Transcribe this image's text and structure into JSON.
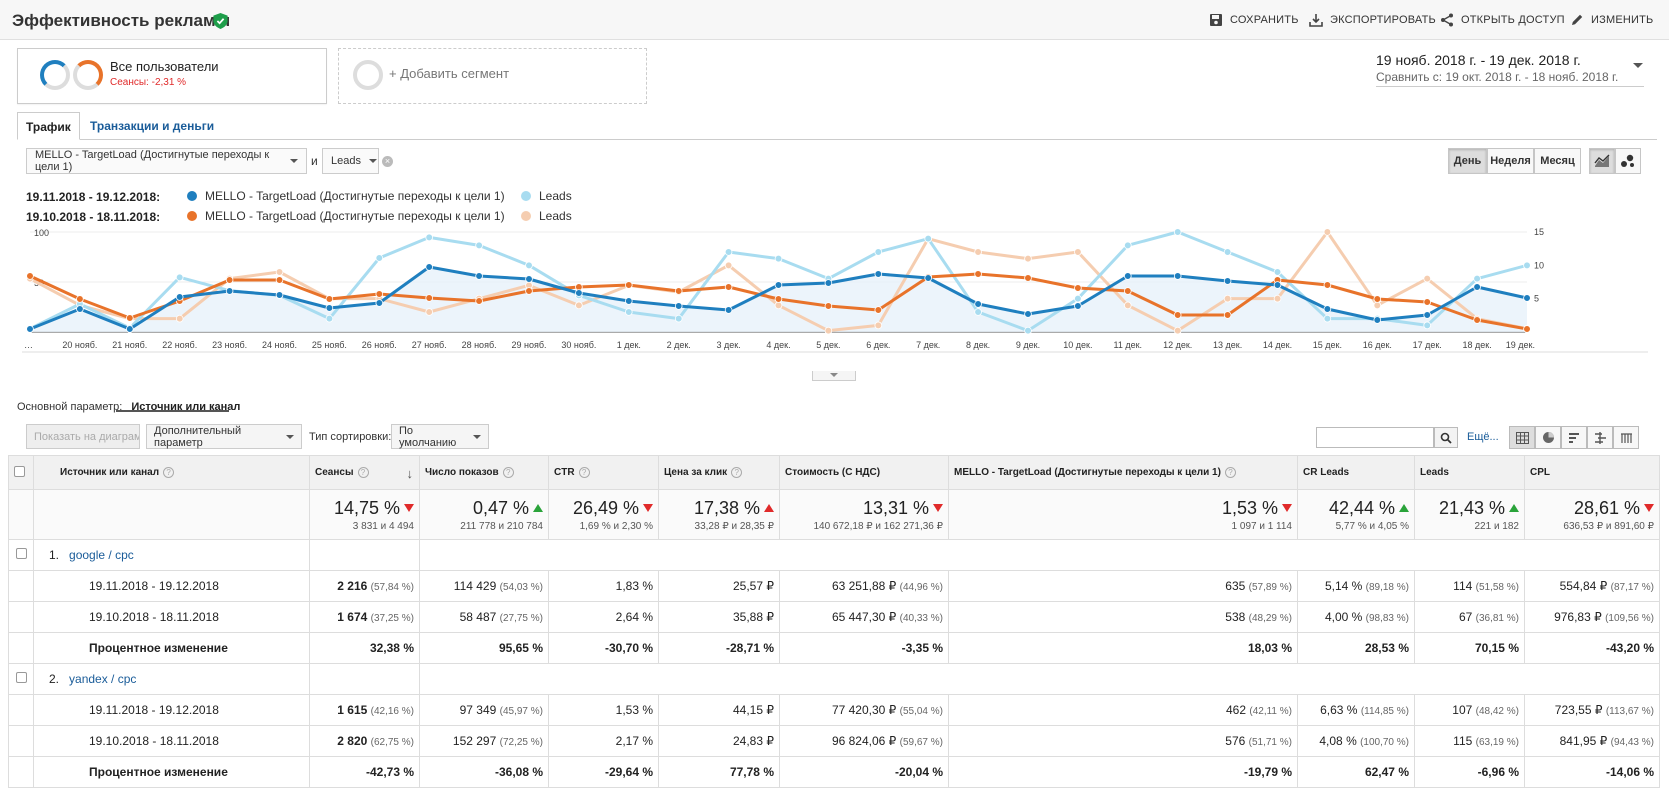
{
  "header": {
    "title": "Эффективность рекламы",
    "actions": [
      {
        "label": "СОХРАНИТЬ",
        "icon": "save-icon"
      },
      {
        "label": "ЭКСПОРТИРОВАТЬ",
        "icon": "export-icon"
      },
      {
        "label": "ОТКРЫТЬ ДОСТУП",
        "icon": "share-icon"
      },
      {
        "label": "ИЗМЕНИТЬ",
        "icon": "pencil-icon"
      }
    ]
  },
  "segments": {
    "active_title": "Все пользователи",
    "active_sub": "Сеансы: -2,31 %",
    "add_label": "+ Добавить сегмент"
  },
  "daterange": {
    "main": "19 нояб. 2018 г. - 19 дек. 2018 г.",
    "compare": "Сравнить с: 19 окт. 2018 г. - 18 нояб. 2018 г."
  },
  "tabs": [
    "Трафик",
    "Транзакции и деньги"
  ],
  "metric_selectors": {
    "metric1": "MELLO - TargetLoad (Достигнутые переходы к цели 1)",
    "conj": "и",
    "metric2": "Leads"
  },
  "period_buttons": [
    "День",
    "Неделя",
    "Месяц"
  ],
  "legend": {
    "period1": "19.11.2018 - 19.12.2018:",
    "period2": "19.10.2018 - 18.11.2018:",
    "metric1": "MELLO - TargetLoad (Достигнутые переходы к цели 1)",
    "metric2": "Leads"
  },
  "colors": {
    "series1_current": "#1f7fbf",
    "series2_current": "#a8dcf0",
    "series1_prev": "#e8732a",
    "series2_prev": "#f5cdb0"
  },
  "chart_data": {
    "type": "line",
    "x": [
      "…",
      "20 нояб.",
      "21 нояб.",
      "22 нояб.",
      "23 нояб.",
      "24 нояб.",
      "25 нояб.",
      "26 нояб.",
      "27 нояб.",
      "28 нояб.",
      "29 нояб.",
      "30 нояб.",
      "1 дек.",
      "2 дек.",
      "3 дек.",
      "4 дек.",
      "5 дек.",
      "6 дек.",
      "7 дек.",
      "8 дек.",
      "9 дек.",
      "10 дек.",
      "11 дек.",
      "12 дек.",
      "13 дек.",
      "14 дек.",
      "15 дек.",
      "16 дек.",
      "17 дек.",
      "18 дек.",
      "19 дек."
    ],
    "y_left_ticks": [
      "100",
      "50"
    ],
    "y_left_range": [
      0,
      100
    ],
    "y_right_ticks": [
      "15",
      "10",
      "5"
    ],
    "y_right_range": [
      0,
      15
    ],
    "series": [
      {
        "name": "MELLO - TargetLoad (Достигнутые переходы к цели 1)",
        "period": "19.11.2018 - 19.12.2018",
        "axis": "left",
        "values": [
          3,
          23,
          3,
          35,
          41,
          37,
          24,
          29,
          65,
          56,
          53,
          39,
          31,
          26,
          22,
          47,
          49,
          58,
          54,
          28,
          18,
          26,
          56,
          56,
          51,
          47,
          23,
          12,
          17,
          45,
          34
        ]
      },
      {
        "name": "Leads",
        "period": "19.11.2018 - 19.12.2018",
        "axis": "right",
        "values": [
          0.5,
          4.2,
          0.6,
          8.2,
          6.2,
          5.5,
          2.0,
          11.1,
          14.2,
          13.0,
          10.0,
          5.5,
          3.0,
          2.0,
          12.0,
          11.0,
          8.0,
          12.0,
          14.0,
          3.0,
          0.2,
          5.0,
          13.0,
          15.0,
          12.0,
          9.0,
          2.0,
          2.0,
          1.0,
          8.0,
          10.0
        ]
      },
      {
        "name": "MELLO - TargetLoad (Достигнутые переходы к цели 1)",
        "period": "19.10.2018 - 18.11.2018",
        "axis": "left",
        "values": [
          56,
          33,
          14,
          31,
          52,
          52,
          33,
          38,
          34,
          31,
          41,
          45,
          47,
          41,
          45,
          33,
          26,
          22,
          55,
          58,
          54,
          44,
          41,
          17,
          17,
          52,
          47,
          33,
          30,
          12,
          3
        ]
      },
      {
        "name": "Leads",
        "period": "19.10.2018 - 18.11.2018",
        "axis": "right",
        "values": [
          8.0,
          4.0,
          2.0,
          2.0,
          8.0,
          9.0,
          5.0,
          5.0,
          3.0,
          5.0,
          7.0,
          4.0,
          7.0,
          6.0,
          10.0,
          4.0,
          0.2,
          1.0,
          14.0,
          12.0,
          11.0,
          12.0,
          4.0,
          0.2,
          5.0,
          5.0,
          15.0,
          4.0,
          8.0,
          2.0,
          0.5
        ]
      }
    ]
  },
  "table_controls": {
    "primary_dim_label": "Основной параметр:",
    "primary_dim_value": "Источник или канал",
    "show_on_chart": "Показать на диаграмме",
    "secondary_dim": "Дополнительный параметр",
    "sort_label": "Тип сортировки:",
    "sort_value": "По умолчанию",
    "more": "Ещё..."
  },
  "table": {
    "columns": [
      "Источник или канал",
      "Сеансы",
      "Число показов",
      "CTR",
      "Цена за клик",
      "Стоимость (С НДС)",
      "MELLO - TargetLoad (Достигнутые переходы к цели 1)",
      "CR Leads",
      "Leads",
      "CPL"
    ],
    "totals": [
      {
        "value": "14,75 %",
        "dir": "down",
        "sub": "3 831 и 4 494"
      },
      {
        "value": "0,47 %",
        "dir": "up",
        "sub": "211 778 и 210 784"
      },
      {
        "value": "26,49 %",
        "dir": "down",
        "sub": "1,69 % и 2,30 %"
      },
      {
        "value": "17,38 %",
        "dir": "up-red",
        "sub": "33,28 ₽ и 28,35 ₽"
      },
      {
        "value": "13,31 %",
        "dir": "down",
        "sub": "140 672,18 ₽ и 162 271,36 ₽"
      },
      {
        "value": "1,53 %",
        "dir": "down",
        "sub": "1 097 и 1 114"
      },
      {
        "value": "42,44 %",
        "dir": "up",
        "sub": "5,77 % и 4,05 %"
      },
      {
        "value": "21,43 %",
        "dir": "up",
        "sub": "221 и 182"
      },
      {
        "value": "28,61 %",
        "dir": "down",
        "sub": "636,53 ₽ и 891,60 ₽"
      }
    ],
    "groups": [
      {
        "index": "1.",
        "name": "google / cpc",
        "rows": [
          {
            "label": "19.11.2018 - 19.12.2018",
            "cells": [
              [
                "2 216",
                "(57,84 %)"
              ],
              [
                "114 429",
                "(54,03 %)"
              ],
              [
                "1,83 %",
                ""
              ],
              [
                "25,57 ₽",
                ""
              ],
              [
                "63 251,88 ₽",
                "(44,96 %)"
              ],
              [
                "635",
                "(57,89 %)"
              ],
              [
                "5,14 %",
                "(89,18 %)"
              ],
              [
                "114",
                "(51,58 %)"
              ],
              [
                "554,84 ₽",
                "(87,17 %)"
              ]
            ]
          },
          {
            "label": "19.10.2018 - 18.11.2018",
            "cells": [
              [
                "1 674",
                "(37,25 %)"
              ],
              [
                "58 487",
                "(27,75 %)"
              ],
              [
                "2,64 %",
                ""
              ],
              [
                "35,88 ₽",
                ""
              ],
              [
                "65 447,30 ₽",
                "(40,33 %)"
              ],
              [
                "538",
                "(48,29 %)"
              ],
              [
                "4,00 %",
                "(98,83 %)"
              ],
              [
                "67",
                "(36,81 %)"
              ],
              [
                "976,83 ₽",
                "(109,56 %)"
              ]
            ]
          },
          {
            "label": "Процентное изменение",
            "bold": true,
            "cells": [
              [
                "32,38 %",
                ""
              ],
              [
                "95,65 %",
                ""
              ],
              [
                "-30,70 %",
                ""
              ],
              [
                "-28,71 %",
                ""
              ],
              [
                "-3,35 %",
                ""
              ],
              [
                "18,03 %",
                ""
              ],
              [
                "28,53 %",
                ""
              ],
              [
                "70,15 %",
                ""
              ],
              [
                "-43,20 %",
                ""
              ]
            ]
          }
        ]
      },
      {
        "index": "2.",
        "name": "yandex / cpc",
        "rows": [
          {
            "label": "19.11.2018 - 19.12.2018",
            "cells": [
              [
                "1 615",
                "(42,16 %)"
              ],
              [
                "97 349",
                "(45,97 %)"
              ],
              [
                "1,53 %",
                ""
              ],
              [
                "44,15 ₽",
                ""
              ],
              [
                "77 420,30 ₽",
                "(55,04 %)"
              ],
              [
                "462",
                "(42,11 %)"
              ],
              [
                "6,63 %",
                "(114,85 %)"
              ],
              [
                "107",
                "(48,42 %)"
              ],
              [
                "723,55 ₽",
                "(113,67 %)"
              ]
            ]
          },
          {
            "label": "19.10.2018 - 18.11.2018",
            "cells": [
              [
                "2 820",
                "(62,75 %)"
              ],
              [
                "152 297",
                "(72,25 %)"
              ],
              [
                "2,17 %",
                ""
              ],
              [
                "24,83 ₽",
                ""
              ],
              [
                "96 824,06 ₽",
                "(59,67 %)"
              ],
              [
                "576",
                "(51,71 %)"
              ],
              [
                "4,08 %",
                "(100,70 %)"
              ],
              [
                "115",
                "(63,19 %)"
              ],
              [
                "841,95 ₽",
                "(94,43 %)"
              ]
            ]
          },
          {
            "label": "Процентное изменение",
            "bold": true,
            "cells": [
              [
                "-42,73 %",
                ""
              ],
              [
                "-36,08 %",
                ""
              ],
              [
                "-29,64 %",
                ""
              ],
              [
                "77,78 %",
                ""
              ],
              [
                "-20,04 %",
                ""
              ],
              [
                "-19,79 %",
                ""
              ],
              [
                "62,47 %",
                ""
              ],
              [
                "-6,96 %",
                ""
              ],
              [
                "-14,06 %",
                ""
              ]
            ]
          }
        ]
      }
    ]
  }
}
